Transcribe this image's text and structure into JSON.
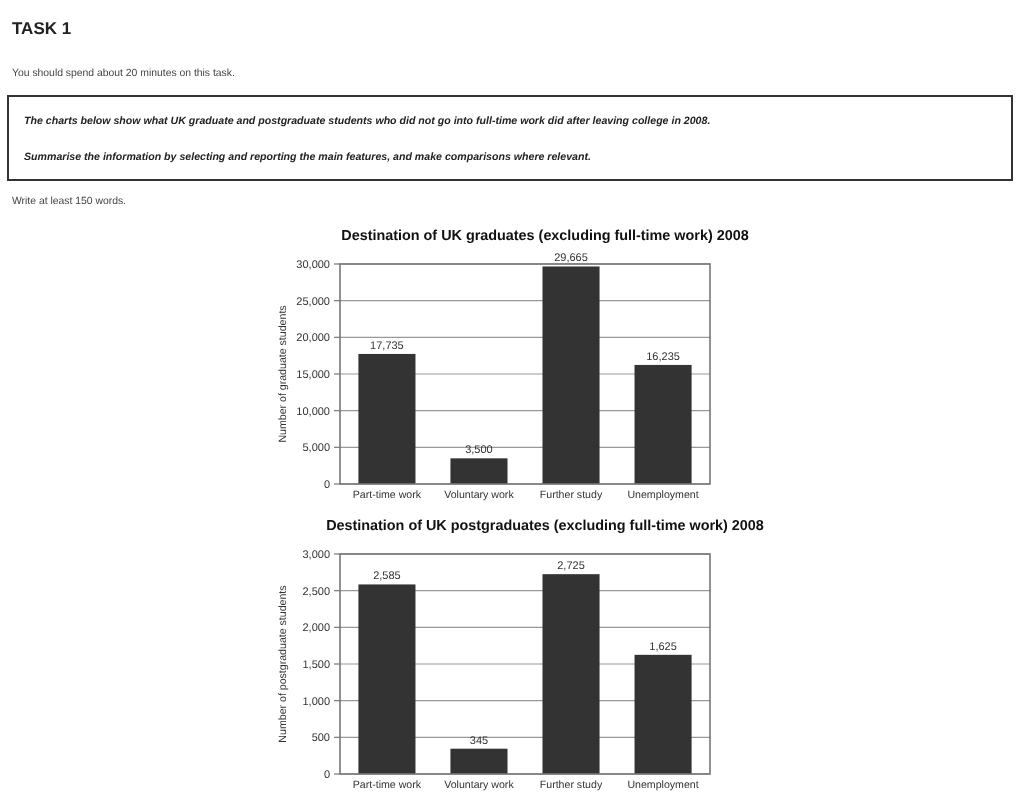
{
  "chart_data": [
    {
      "type": "bar",
      "title": "Destination of UK graduates (excluding full-time work) 2008",
      "ylabel": "Number of graduate students",
      "annotations": [
        "TASK 1",
        "You should spend about 20 minutes on this task.",
        "The charts below show what UK graduate and postgraduate students who did not go into full-time work did after leaving college in 2008.",
        "Summarise the information by selecting and reporting the main features, and make comparisons where relevant.",
        "Write at least 150 words."
      ],
      "categories": [
        "Part-time work",
        "Voluntary work",
        "Further study",
        "Unemployment"
      ],
      "values": [
        17735,
        3500,
        29665,
        16235
      ],
      "value_labels": [
        "17,735",
        "3,500",
        "29,665",
        "16,235"
      ],
      "color": "#333333",
      "ylim": [
        0,
        30000
      ],
      "yticks": [
        {
          "value": 0,
          "label": "0"
        },
        {
          "value": 5000,
          "label": "5,000"
        },
        {
          "value": 10000,
          "label": "10,000"
        },
        {
          "value": 15000,
          "label": "15,000"
        },
        {
          "value": 20000,
          "label": "20,000"
        },
        {
          "value": 25000,
          "label": "25,000"
        },
        {
          "value": 30000,
          "label": "30,000"
        }
      ],
      "grid": "y"
    },
    {
      "type": "bar",
      "title": "Destination of UK postgraduates (excluding full-time work) 2008",
      "ylabel": "Number of postgraduate students",
      "categories": [
        "Part-time work",
        "Voluntary work",
        "Further study",
        "Unemployment"
      ],
      "values": [
        2585,
        345,
        2725,
        1625
      ],
      "value_labels": [
        "2,585",
        "345",
        "2,725",
        "1,625"
      ],
      "color": "#333333",
      "ylim": [
        0,
        3000
      ],
      "yticks": [
        {
          "value": 0,
          "label": "0"
        },
        {
          "value": 500,
          "label": "500"
        },
        {
          "value": 1000,
          "label": "1,000"
        },
        {
          "value": 1500,
          "label": "1,500"
        },
        {
          "value": 2000,
          "label": "2,000"
        },
        {
          "value": 2500,
          "label": "2,500"
        },
        {
          "value": 3000,
          "label": "3,000"
        }
      ],
      "grid": "y"
    }
  ]
}
